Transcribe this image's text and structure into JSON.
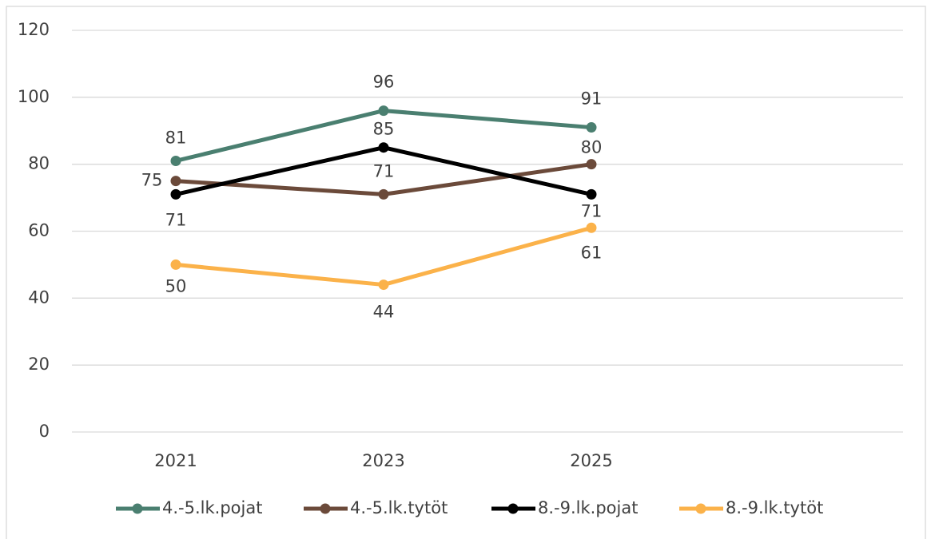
{
  "chart_data": {
    "type": "line",
    "categories": [
      "2021",
      "2023",
      "2025",
      null
    ],
    "series": [
      {
        "name": "4.-5.lk.pojat",
        "color": "#4a7f70",
        "values": [
          81,
          96,
          91,
          null
        ]
      },
      {
        "name": "4.-5.lk.tytöt",
        "color": "#6b4a3a",
        "values": [
          75,
          71,
          80,
          null
        ]
      },
      {
        "name": "8.-9.lk.pojat",
        "color": "#000000",
        "values": [
          71,
          85,
          71,
          null
        ]
      },
      {
        "name": "8.-9.lk.tytöt",
        "color": "#fbb24a",
        "values": [
          50,
          44,
          61,
          null
        ]
      }
    ],
    "ylim": [
      0,
      120
    ],
    "yticks": [
      0,
      20,
      40,
      60,
      80,
      100,
      120
    ],
    "grid": true,
    "legend": "bottom"
  }
}
